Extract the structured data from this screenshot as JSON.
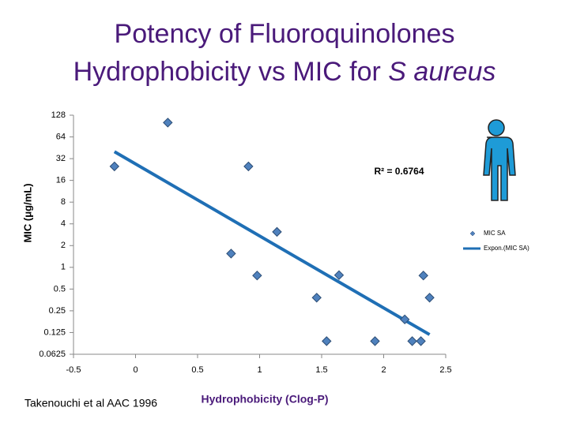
{
  "chart_data": {
    "type": "scatter",
    "title_line1": "Potency of Fluoroquinolones",
    "title_line2": "Hydrophobicity vs MIC for ",
    "title_italic": "S aureus",
    "x_label": "Hydrophobicity (Clog-P)",
    "y_label": "MIC (μg/mL)",
    "annotation": "R² = 0.6764",
    "source": "Takenouchi et al AAC 1996",
    "log_y": true,
    "xlim": [
      -0.5,
      2.5
    ],
    "xticks": [
      -0.5,
      0,
      0.5,
      1,
      1.5,
      2,
      2.5
    ],
    "ylim": [
      0.0625,
      128
    ],
    "yticks": [
      128,
      64,
      32,
      16,
      8,
      4,
      2,
      1,
      0.5,
      0.25,
      0.125,
      0.0625
    ],
    "legend": "right",
    "series": [
      {
        "name": "MIC SA",
        "color": "#4f81bd",
        "x": [
          0.26,
          -0.17,
          0.91,
          1.14,
          0.77,
          0.98,
          1.64,
          2.32,
          1.46,
          2.37,
          2.17,
          1.54,
          1.93,
          2.23,
          2.3
        ],
        "values": [
          101,
          25,
          25,
          3.1,
          1.55,
          0.77,
          0.78,
          0.77,
          0.38,
          0.38,
          0.19,
          0.095,
          0.095,
          0.095,
          0.095
        ]
      },
      {
        "name": "Expon.(MIC SA)",
        "color": "#1f6fb5",
        "x": [
          -0.17,
          2.37
        ],
        "values": [
          40,
          0.117
        ]
      }
    ]
  }
}
